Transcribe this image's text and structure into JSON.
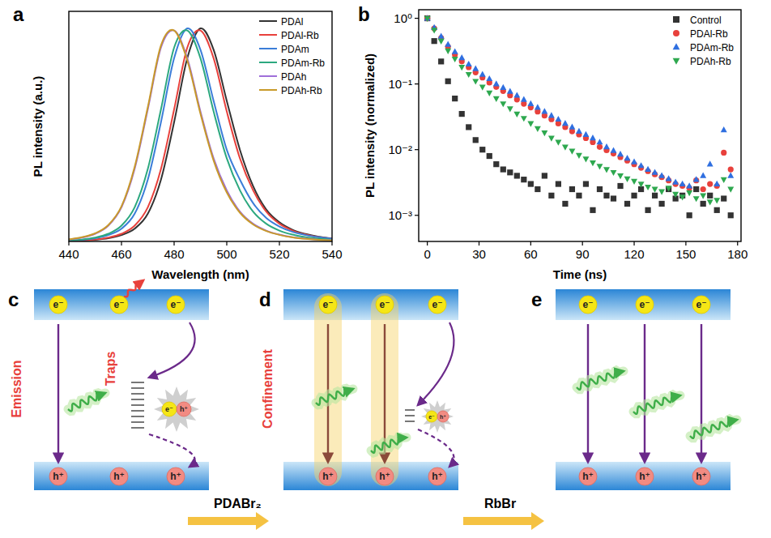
{
  "chart_data": [
    {
      "type": "line",
      "x_label": "Wavelength (nm)",
      "y_label": "PL intensity (a.u.)",
      "x": [
        440,
        445,
        450,
        455,
        460,
        465,
        470,
        475,
        480,
        485,
        490,
        495,
        500,
        505,
        510,
        515,
        520,
        525,
        530,
        535,
        540
      ],
      "series": [
        {
          "name": "PDAl",
          "color": "#333333",
          "values": [
            0.002,
            0.004,
            0.008,
            0.015,
            0.03,
            0.06,
            0.13,
            0.29,
            0.56,
            0.86,
            1.0,
            0.9,
            0.66,
            0.43,
            0.26,
            0.15,
            0.09,
            0.055,
            0.035,
            0.022,
            0.014
          ]
        },
        {
          "name": "PDAl-Rb",
          "color": "#e8413c",
          "values": [
            0.003,
            0.005,
            0.009,
            0.018,
            0.036,
            0.074,
            0.16,
            0.34,
            0.62,
            0.91,
            0.99,
            0.86,
            0.61,
            0.39,
            0.24,
            0.14,
            0.083,
            0.051,
            0.032,
            0.02,
            0.013
          ]
        },
        {
          "name": "PDAm",
          "color": "#3b7dd8",
          "values": [
            0.004,
            0.008,
            0.015,
            0.03,
            0.06,
            0.13,
            0.29,
            0.56,
            0.86,
            1.0,
            0.9,
            0.66,
            0.43,
            0.29,
            0.18,
            0.11,
            0.07,
            0.045,
            0.03,
            0.02,
            0.013
          ]
        },
        {
          "name": "PDAm-Rb",
          "color": "#2ca87f",
          "values": [
            0.005,
            0.009,
            0.018,
            0.036,
            0.074,
            0.16,
            0.34,
            0.62,
            0.91,
            0.99,
            0.86,
            0.61,
            0.39,
            0.24,
            0.14,
            0.083,
            0.051,
            0.032,
            0.02,
            0.013,
            0.008
          ]
        },
        {
          "name": "PDAh",
          "color": "#9f6fd9",
          "values": [
            0.009,
            0.018,
            0.036,
            0.074,
            0.16,
            0.34,
            0.62,
            0.91,
            0.99,
            0.86,
            0.61,
            0.39,
            0.24,
            0.14,
            0.083,
            0.051,
            0.032,
            0.02,
            0.013,
            0.008,
            0.005
          ]
        },
        {
          "name": "PDAh-Rb",
          "color": "#c89a2a",
          "values": [
            0.01,
            0.02,
            0.038,
            0.077,
            0.165,
            0.35,
            0.63,
            0.92,
            0.99,
            0.85,
            0.6,
            0.38,
            0.23,
            0.135,
            0.08,
            0.049,
            0.031,
            0.019,
            0.012,
            0.008,
            0.005
          ]
        }
      ],
      "xlim": [
        440,
        540
      ],
      "xticks": [
        440,
        460,
        480,
        500,
        520,
        540
      ],
      "ylim": [
        0,
        1.08
      ],
      "tick_labels": "x",
      "legend": "top-right"
    },
    {
      "type": "scatter",
      "x_label": "Time (ns)",
      "y_label": "PL intensity (normalized)",
      "x": [
        0,
        4,
        8,
        12,
        16,
        20,
        24,
        28,
        32,
        36,
        40,
        44,
        48,
        52,
        56,
        60,
        64,
        68,
        72,
        76,
        80,
        84,
        88,
        92,
        96,
        100,
        104,
        108,
        112,
        116,
        120,
        124,
        128,
        132,
        136,
        140,
        144,
        148,
        152,
        156,
        160,
        164,
        168,
        172,
        176
      ],
      "series": [
        {
          "name": "Control",
          "color": "#333333",
          "marker": "square",
          "values": [
            1,
            0.45,
            0.22,
            0.11,
            0.06,
            0.035,
            0.022,
            0.014,
            0.01,
            0.008,
            0.006,
            0.005,
            0.0045,
            0.004,
            0.0035,
            0.003,
            0.0025,
            0.004,
            0.002,
            0.003,
            0.0015,
            0.0025,
            0.002,
            0.003,
            0.0012,
            0.0025,
            0.002,
            0.0018,
            0.0028,
            0.0015,
            0.002,
            0.0025,
            0.0012,
            0.002,
            0.0015,
            0.0025,
            0.0018,
            0.002,
            0.001,
            0.0025,
            0.0015,
            0.002,
            0.0012,
            0.0018,
            0.001
          ]
        },
        {
          "name": "PDAl-Rb",
          "color": "#e8413c",
          "marker": "circle",
          "values": [
            1,
            0.7,
            0.5,
            0.37,
            0.28,
            0.22,
            0.18,
            0.15,
            0.125,
            0.105,
            0.09,
            0.078,
            0.067,
            0.058,
            0.05,
            0.044,
            0.038,
            0.033,
            0.029,
            0.025,
            0.022,
            0.019,
            0.017,
            0.015,
            0.013,
            0.011,
            0.0098,
            0.0087,
            0.0077,
            0.0068,
            0.006,
            0.0053,
            0.0047,
            0.0042,
            0.0038,
            0.0034,
            0.003,
            0.0028,
            0.0026,
            0.0034,
            0.0025,
            0.003,
            0.0028,
            0.009,
            0.005
          ]
        },
        {
          "name": "PDAm-Rb",
          "color": "#2f6fe0",
          "marker": "triangle-up",
          "values": [
            1,
            0.72,
            0.53,
            0.4,
            0.31,
            0.25,
            0.2,
            0.17,
            0.14,
            0.12,
            0.1,
            0.088,
            0.077,
            0.067,
            0.058,
            0.05,
            0.044,
            0.038,
            0.033,
            0.029,
            0.025,
            0.022,
            0.019,
            0.017,
            0.015,
            0.013,
            0.011,
            0.0097,
            0.0085,
            0.0074,
            0.0065,
            0.0057,
            0.005,
            0.0045,
            0.004,
            0.0036,
            0.0032,
            0.003,
            0.0028,
            0.0035,
            0.004,
            0.006,
            0.003,
            0.02,
            0.004
          ]
        },
        {
          "name": "PDAh-Rb",
          "color": "#2ea84f",
          "marker": "triangle-down",
          "values": [
            1,
            0.66,
            0.45,
            0.32,
            0.24,
            0.18,
            0.14,
            0.11,
            0.09,
            0.073,
            0.06,
            0.05,
            0.042,
            0.035,
            0.03,
            0.025,
            0.021,
            0.018,
            0.015,
            0.013,
            0.011,
            0.0095,
            0.0082,
            0.0072,
            0.0063,
            0.0056,
            0.005,
            0.0045,
            0.004,
            0.0036,
            0.0033,
            0.003,
            0.0027,
            0.0025,
            0.0023,
            0.0026,
            0.0021,
            0.0019,
            0.0022,
            0.0018,
            0.002,
            0.0016,
            0.0017,
            0.0035,
            0.0025
          ]
        }
      ],
      "xlim": [
        -5,
        182
      ],
      "xticks": [
        0,
        30,
        60,
        90,
        120,
        150,
        180
      ],
      "ylim": [
        0.0004,
        1.35
      ],
      "yticks": [
        {
          "value": 0.001,
          "label": "10⁻³"
        },
        {
          "value": 0.01,
          "label": "10⁻²"
        },
        {
          "value": 0.1,
          "label": "10⁻¹"
        },
        {
          "value": 1,
          "label": "10⁰"
        }
      ],
      "log": "y",
      "legend": "top-right"
    }
  ],
  "panel_letters": [
    "a",
    "b",
    "c",
    "d",
    "e"
  ],
  "diagram": {
    "carriers": {
      "electron": "e⁻",
      "hole": "h⁺"
    },
    "panels": [
      {
        "side_label": "Emission",
        "trap_label": "Traps"
      },
      {
        "side_label": "Confinement"
      },
      {}
    ],
    "arrows": [
      {
        "label": "PDABr₂"
      },
      {
        "label": "RbBr"
      }
    ]
  }
}
